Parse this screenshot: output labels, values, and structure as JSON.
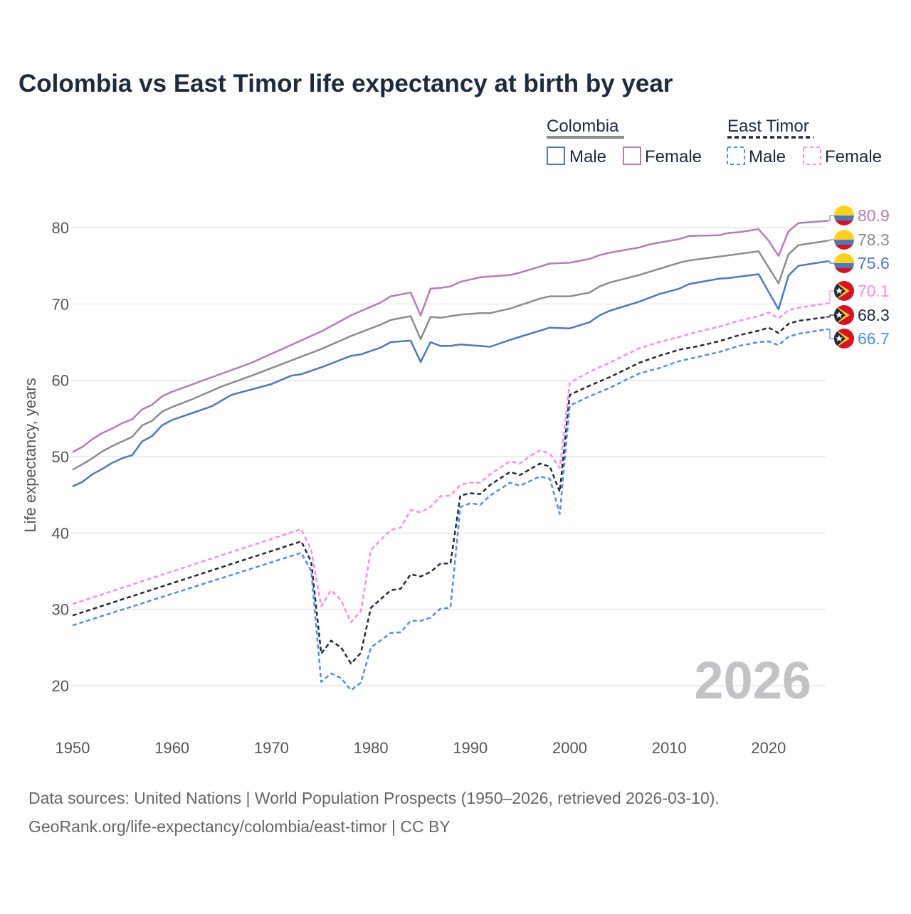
{
  "chart_data": {
    "type": "line",
    "title": "Colombia vs East Timor life expectancy at birth by year",
    "xlabel": "",
    "ylabel": "Life expectancy, years",
    "xlim": [
      1950,
      2026
    ],
    "ylim": [
      15,
      85
    ],
    "x_ticks": [
      1950,
      1960,
      1970,
      1980,
      1990,
      2000,
      2010,
      2020
    ],
    "y_ticks": [
      20,
      30,
      40,
      50,
      60,
      70,
      80
    ],
    "grid": true,
    "watermark": "2026",
    "legend": {
      "placement": "top-right",
      "groups": [
        {
          "name": "Colombia",
          "style": "solid",
          "color": "#8c8c8c",
          "items": [
            {
              "label": "Male",
              "color": "#4a78c8"
            },
            {
              "label": "Female",
              "color": "#b87ab8"
            }
          ]
        },
        {
          "name": "East Timor",
          "style": "dashed",
          "color": "#1e2a3e",
          "items": [
            {
              "label": "Male",
              "color": "#4a90f0"
            },
            {
              "label": "Female",
              "color": "#f98af0"
            }
          ]
        }
      ]
    },
    "series": [
      {
        "name": "Colombia Female",
        "country": "colombia",
        "dashed": false,
        "color": "#b87ab8",
        "end_label": "80.9",
        "points": [
          [
            1950,
            50.6
          ],
          [
            1951,
            51.3
          ],
          [
            1952,
            52.3
          ],
          [
            1953,
            53.1
          ],
          [
            1954,
            53.7
          ],
          [
            1955,
            54.4
          ],
          [
            1956,
            54.9
          ],
          [
            1957,
            56.2
          ],
          [
            1958,
            56.8
          ],
          [
            1959,
            57.9
          ],
          [
            1960,
            58.5
          ],
          [
            1968,
            62.3
          ],
          [
            1975,
            66.4
          ],
          [
            1978,
            68.5
          ],
          [
            1981,
            70.2
          ],
          [
            1982,
            71.0
          ],
          [
            1984,
            71.5
          ],
          [
            1985,
            68.5
          ],
          [
            1986,
            72.0
          ],
          [
            1987,
            72.1
          ],
          [
            1988,
            72.3
          ],
          [
            1989,
            72.9
          ],
          [
            1991,
            73.5
          ],
          [
            1994,
            73.8
          ],
          [
            1995,
            74.1
          ],
          [
            1997,
            74.9
          ],
          [
            1998,
            75.3
          ],
          [
            2000,
            75.4
          ],
          [
            2002,
            75.9
          ],
          [
            2003,
            76.4
          ],
          [
            2004,
            76.7
          ],
          [
            2007,
            77.4
          ],
          [
            2008,
            77.8
          ],
          [
            2011,
            78.5
          ],
          [
            2012,
            78.9
          ],
          [
            2015,
            79.0
          ],
          [
            2016,
            79.3
          ],
          [
            2017,
            79.4
          ],
          [
            2019,
            79.8
          ],
          [
            2020,
            78.3
          ],
          [
            2021,
            76.3
          ],
          [
            2022,
            79.5
          ],
          [
            2023,
            80.6
          ],
          [
            2024,
            80.7
          ],
          [
            2026,
            80.9
          ]
        ]
      },
      {
        "name": "Colombia Total",
        "country": "colombia",
        "dashed": false,
        "color": "#8c8c8c",
        "end_label": "78.3",
        "points": [
          [
            1950,
            48.3
          ],
          [
            1951,
            49.0
          ],
          [
            1952,
            49.8
          ],
          [
            1953,
            50.7
          ],
          [
            1954,
            51.4
          ],
          [
            1955,
            52.0
          ],
          [
            1956,
            52.6
          ],
          [
            1957,
            54.1
          ],
          [
            1958,
            54.7
          ],
          [
            1959,
            55.9
          ],
          [
            1960,
            56.5
          ],
          [
            1962,
            57.5
          ],
          [
            1965,
            59.2
          ],
          [
            1968,
            60.6
          ],
          [
            1975,
            64.1
          ],
          [
            1978,
            65.8
          ],
          [
            1981,
            67.3
          ],
          [
            1982,
            67.9
          ],
          [
            1984,
            68.4
          ],
          [
            1985,
            65.4
          ],
          [
            1986,
            68.3
          ],
          [
            1987,
            68.2
          ],
          [
            1988,
            68.4
          ],
          [
            1989,
            68.6
          ],
          [
            1991,
            68.8
          ],
          [
            1992,
            68.8
          ],
          [
            1994,
            69.4
          ],
          [
            1997,
            70.7
          ],
          [
            1998,
            71.0
          ],
          [
            2000,
            71.0
          ],
          [
            2002,
            71.5
          ],
          [
            2003,
            72.3
          ],
          [
            2004,
            72.8
          ],
          [
            2007,
            73.8
          ],
          [
            2011,
            75.4
          ],
          [
            2012,
            75.7
          ],
          [
            2015,
            76.2
          ],
          [
            2019,
            76.9
          ],
          [
            2021,
            72.7
          ],
          [
            2022,
            76.5
          ],
          [
            2023,
            77.7
          ],
          [
            2026,
            78.3
          ]
        ]
      },
      {
        "name": "Colombia Male",
        "country": "colombia",
        "dashed": false,
        "color": "#4a78c8",
        "end_label": "75.6",
        "points": [
          [
            1950,
            46.1
          ],
          [
            1951,
            46.7
          ],
          [
            1952,
            47.7
          ],
          [
            1953,
            48.4
          ],
          [
            1954,
            49.2
          ],
          [
            1955,
            49.8
          ],
          [
            1956,
            50.2
          ],
          [
            1957,
            52.0
          ],
          [
            1958,
            52.7
          ],
          [
            1959,
            54.1
          ],
          [
            1960,
            54.8
          ],
          [
            1964,
            56.6
          ],
          [
            1966,
            58.1
          ],
          [
            1970,
            59.5
          ],
          [
            1972,
            60.6
          ],
          [
            1973,
            60.8
          ],
          [
            1975,
            61.7
          ],
          [
            1978,
            63.2
          ],
          [
            1979,
            63.4
          ],
          [
            1981,
            64.3
          ],
          [
            1982,
            65.0
          ],
          [
            1984,
            65.2
          ],
          [
            1985,
            62.4
          ],
          [
            1986,
            65.0
          ],
          [
            1987,
            64.5
          ],
          [
            1988,
            64.5
          ],
          [
            1989,
            64.7
          ],
          [
            1992,
            64.4
          ],
          [
            1994,
            65.3
          ],
          [
            1995,
            65.7
          ],
          [
            1997,
            66.5
          ],
          [
            1998,
            66.9
          ],
          [
            2000,
            66.8
          ],
          [
            2002,
            67.6
          ],
          [
            2003,
            68.5
          ],
          [
            2004,
            69.1
          ],
          [
            2007,
            70.3
          ],
          [
            2009,
            71.3
          ],
          [
            2011,
            72.0
          ],
          [
            2012,
            72.6
          ],
          [
            2015,
            73.3
          ],
          [
            2016,
            73.4
          ],
          [
            2019,
            73.9
          ],
          [
            2021,
            69.3
          ],
          [
            2022,
            73.7
          ],
          [
            2023,
            75.0
          ],
          [
            2026,
            75.6
          ]
        ]
      },
      {
        "name": "East Timor Female",
        "country": "east-timor",
        "dashed": true,
        "color": "#f98af0",
        "end_label": "70.1",
        "points": [
          [
            1950,
            30.7
          ],
          [
            1973,
            40.5
          ],
          [
            1974,
            37.8
          ],
          [
            1975,
            30.4
          ],
          [
            1976,
            32.5
          ],
          [
            1977,
            31.2
          ],
          [
            1978,
            28.3
          ],
          [
            1979,
            29.8
          ],
          [
            1980,
            37.8
          ],
          [
            1982,
            40.4
          ],
          [
            1983,
            40.7
          ],
          [
            1984,
            43.0
          ],
          [
            1985,
            42.7
          ],
          [
            1986,
            43.4
          ],
          [
            1987,
            44.8
          ],
          [
            1988,
            44.9
          ],
          [
            1989,
            46.3
          ],
          [
            1990,
            46.6
          ],
          [
            1991,
            46.6
          ],
          [
            1992,
            47.7
          ],
          [
            1994,
            49.4
          ],
          [
            1995,
            49.1
          ],
          [
            1996,
            50.1
          ],
          [
            1997,
            50.8
          ],
          [
            1998,
            50.4
          ],
          [
            1999,
            48.5
          ],
          [
            2000,
            59.7
          ],
          [
            2002,
            61.1
          ],
          [
            2004,
            62.3
          ],
          [
            2007,
            64.2
          ],
          [
            2009,
            65.0
          ],
          [
            2011,
            65.7
          ],
          [
            2013,
            66.4
          ],
          [
            2015,
            67.0
          ],
          [
            2017,
            67.8
          ],
          [
            2019,
            68.4
          ],
          [
            2020,
            68.9
          ],
          [
            2021,
            68.1
          ],
          [
            2022,
            69.2
          ],
          [
            2023,
            69.5
          ],
          [
            2026,
            70.1
          ]
        ]
      },
      {
        "name": "East Timor Total",
        "country": "east-timor",
        "dashed": true,
        "color": "#1e2a3e",
        "end_label": "68.3",
        "points": [
          [
            1950,
            29.2
          ],
          [
            1973,
            38.9
          ],
          [
            1974,
            36.2
          ],
          [
            1975,
            24.2
          ],
          [
            1976,
            25.9
          ],
          [
            1977,
            25.0
          ],
          [
            1978,
            22.9
          ],
          [
            1979,
            24.3
          ],
          [
            1980,
            30.2
          ],
          [
            1982,
            32.5
          ],
          [
            1983,
            32.7
          ],
          [
            1984,
            34.6
          ],
          [
            1985,
            34.3
          ],
          [
            1986,
            34.9
          ],
          [
            1987,
            36.0
          ],
          [
            1988,
            36.0
          ],
          [
            1989,
            44.9
          ],
          [
            1990,
            45.2
          ],
          [
            1991,
            45.1
          ],
          [
            1992,
            46.3
          ],
          [
            1994,
            48.0
          ],
          [
            1995,
            47.6
          ],
          [
            1997,
            49.1
          ],
          [
            1998,
            48.7
          ],
          [
            1999,
            45.4
          ],
          [
            2000,
            58.1
          ],
          [
            2002,
            59.3
          ],
          [
            2004,
            60.4
          ],
          [
            2007,
            62.3
          ],
          [
            2009,
            63.2
          ],
          [
            2011,
            64.0
          ],
          [
            2013,
            64.5
          ],
          [
            2015,
            65.1
          ],
          [
            2017,
            65.9
          ],
          [
            2019,
            66.5
          ],
          [
            2020,
            66.9
          ],
          [
            2021,
            66.2
          ],
          [
            2022,
            67.4
          ],
          [
            2023,
            67.8
          ],
          [
            2026,
            68.3
          ]
        ]
      },
      {
        "name": "East Timor Male",
        "country": "east-timor",
        "dashed": true,
        "color": "#4a90f0",
        "end_label": "66.7",
        "points": [
          [
            1950,
            27.9
          ],
          [
            1973,
            37.4
          ],
          [
            1974,
            35.0
          ],
          [
            1975,
            20.5
          ],
          [
            1976,
            21.6
          ],
          [
            1977,
            21.0
          ],
          [
            1978,
            19.4
          ],
          [
            1979,
            20.4
          ],
          [
            1980,
            25.0
          ],
          [
            1982,
            26.9
          ],
          [
            1983,
            27.0
          ],
          [
            1984,
            28.5
          ],
          [
            1985,
            28.5
          ],
          [
            1986,
            28.9
          ],
          [
            1987,
            30.1
          ],
          [
            1988,
            30.2
          ],
          [
            1989,
            43.4
          ],
          [
            1990,
            43.9
          ],
          [
            1991,
            43.7
          ],
          [
            1992,
            44.9
          ],
          [
            1994,
            46.6
          ],
          [
            1995,
            46.2
          ],
          [
            1997,
            47.4
          ],
          [
            1998,
            47.1
          ],
          [
            1999,
            42.5
          ],
          [
            2000,
            56.7
          ],
          [
            2002,
            57.9
          ],
          [
            2004,
            59.0
          ],
          [
            2007,
            60.9
          ],
          [
            2009,
            61.6
          ],
          [
            2011,
            62.5
          ],
          [
            2013,
            63.1
          ],
          [
            2015,
            63.7
          ],
          [
            2017,
            64.5
          ],
          [
            2019,
            65.0
          ],
          [
            2020,
            65.1
          ],
          [
            2021,
            64.6
          ],
          [
            2022,
            65.7
          ],
          [
            2023,
            66.1
          ],
          [
            2026,
            66.7
          ]
        ]
      }
    ]
  },
  "footer": {
    "line1": "Data sources: United Nations | World Population Prospects (1950–2026, retrieved 2026-03-10).",
    "line2": "GeoRank.org/life-expectancy/colombia/east-timor | CC BY"
  }
}
